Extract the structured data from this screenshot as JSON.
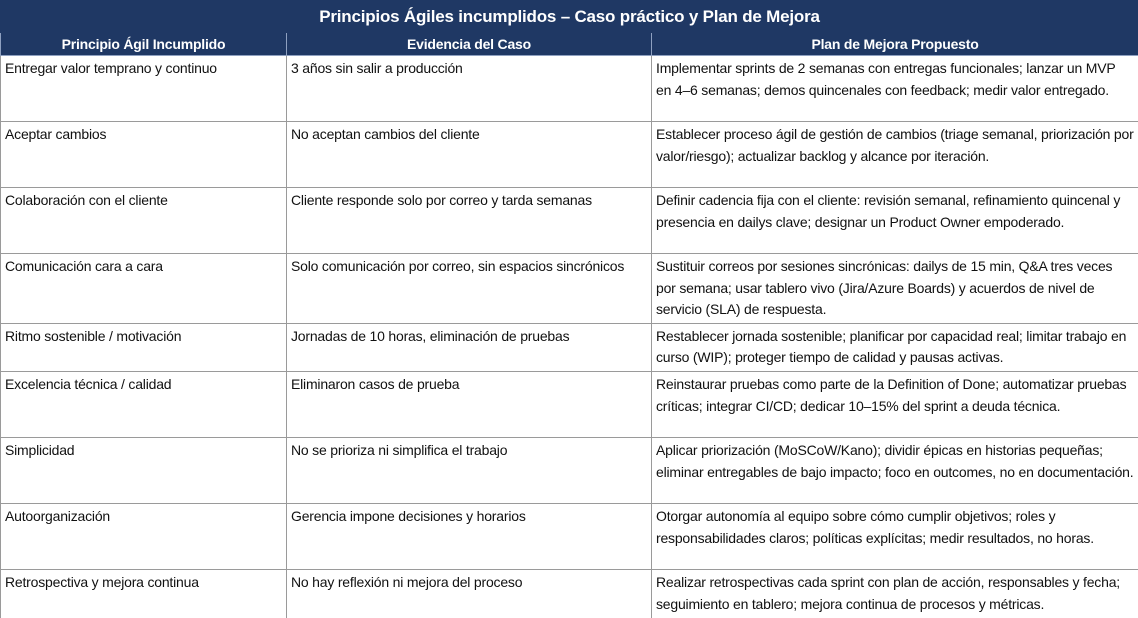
{
  "title": "Principios Ágiles incumplidos – Caso práctico y Plan de Mejora",
  "table": {
    "columns": [
      "Principio Ágil Incumplido",
      "Evidencia del Caso",
      "Plan de Mejora Propuesto"
    ],
    "rows": [
      [
        "Entregar valor temprano y continuo",
        "3 años sin salir a producción",
        "Implementar sprints de 2 semanas con entregas funcionales; lanzar un MVP en 4–6 semanas; demos quincenales con feedback; medir valor entregado."
      ],
      [
        "Aceptar cambios",
        "No aceptan cambios del cliente",
        "Establecer proceso ágil de gestión de cambios (triage semanal, priorización por valor/riesgo); actualizar backlog y alcance por iteración."
      ],
      [
        "Colaboración con el cliente",
        "Cliente responde solo por correo y tarda semanas",
        "Definir cadencia fija con el cliente: revisión semanal, refinamiento quincenal y presencia en dailys clave; designar un Product Owner empoderado."
      ],
      [
        "Comunicación cara a cara",
        "Solo comunicación por correo, sin espacios sincrónicos",
        "Sustituir correos por sesiones sincrónicas: dailys de 15 min, Q&A tres veces por semana; usar tablero vivo (Jira/Azure Boards) y acuerdos de nivel de servicio (SLA) de respuesta."
      ],
      [
        "Ritmo sostenible / motivación",
        "Jornadas de 10 horas, eliminación de pruebas",
        "Restablecer jornada sostenible; planificar por capacidad real; limitar trabajo en curso (WIP); proteger tiempo de calidad y pausas activas."
      ],
      [
        "Excelencia técnica / calidad",
        "Eliminaron casos de prueba",
        "Reinstaurar pruebas como parte de la Definition of Done; automatizar pruebas críticas; integrar CI/CD; dedicar 10–15% del sprint a deuda técnica."
      ],
      [
        "Simplicidad",
        "No se prioriza ni simplifica el trabajo",
        "Aplicar priorización (MoSCoW/Kano); dividir épicas en historias pequeñas; eliminar entregables de bajo impacto; foco en outcomes, no en documentación."
      ],
      [
        "Autoorganización",
        "Gerencia impone decisiones y horarios",
        "Otorgar autonomía al equipo sobre cómo cumplir objetivos; roles y responsabilidades claros; políticas explícitas; medir resultados, no horas."
      ],
      [
        "Retrospectiva y mejora continua",
        "No hay reflexión ni mejora del proceso",
        "Realizar retrospectivas cada sprint con plan de acción, responsables y fecha; seguimiento en tablero; mejora continua de procesos y métricas."
      ]
    ]
  }
}
